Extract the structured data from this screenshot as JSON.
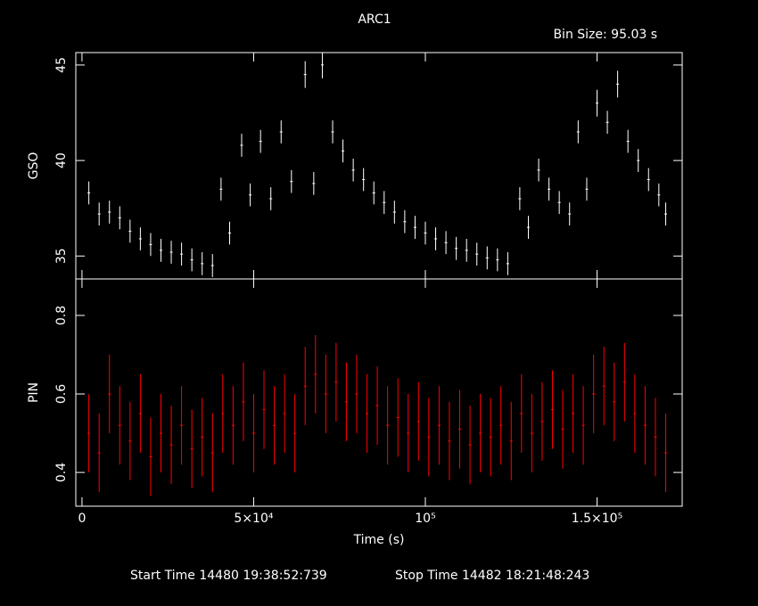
{
  "title": "ARC1",
  "bin_size": "Bin Size: 95.03 s",
  "start_time": "Start Time 14480 19:38:52:739",
  "stop_time": "Stop Time 14482 18:21:48:243",
  "chart_data": [
    {
      "type": "errorbar",
      "ylabel": "GSO",
      "color": "#ffffff",
      "xlim": [
        -1800,
        174800
      ],
      "ylim": [
        33.8,
        45.65
      ],
      "yticks": [
        35,
        40,
        45
      ],
      "x": [
        2000,
        5000,
        8000,
        11000,
        14000,
        17000,
        20000,
        23000,
        26000,
        29000,
        32000,
        35000,
        38000,
        40500,
        43000,
        46500,
        49000,
        52000,
        55000,
        58000,
        61000,
        65000,
        67500,
        70000,
        73000,
        76000,
        79000,
        82000,
        85000,
        88000,
        91000,
        94000,
        97000,
        100000,
        103000,
        106000,
        109000,
        112000,
        115000,
        118000,
        121000,
        124000,
        127500,
        130000,
        133000,
        136000,
        139000,
        142000,
        144500,
        147000,
        150000,
        153000,
        156000,
        159000,
        162000,
        165000,
        168000,
        170000
      ],
      "values": [
        38.3,
        37.2,
        37.3,
        37.0,
        36.3,
        35.9,
        35.6,
        35.3,
        35.2,
        35.1,
        34.8,
        34.6,
        34.5,
        38.5,
        36.2,
        40.8,
        38.2,
        41.0,
        38.0,
        41.5,
        38.9,
        44.5,
        38.8,
        45.0,
        41.5,
        40.5,
        39.5,
        39.0,
        38.3,
        37.8,
        37.3,
        36.8,
        36.5,
        36.2,
        35.9,
        35.7,
        35.4,
        35.3,
        35.1,
        34.9,
        34.8,
        34.6,
        38.0,
        36.5,
        39.5,
        38.5,
        37.8,
        37.2,
        41.5,
        38.5,
        43.0,
        42.0,
        44.0,
        41.0,
        40.0,
        39.0,
        38.2,
        37.2
      ],
      "errors": [
        0.6,
        0.6,
        0.6,
        0.6,
        0.6,
        0.6,
        0.6,
        0.6,
        0.6,
        0.6,
        0.6,
        0.6,
        0.6,
        0.6,
        0.6,
        0.6,
        0.6,
        0.6,
        0.6,
        0.6,
        0.6,
        0.7,
        0.6,
        0.7,
        0.6,
        0.6,
        0.6,
        0.6,
        0.6,
        0.6,
        0.6,
        0.6,
        0.6,
        0.6,
        0.6,
        0.6,
        0.6,
        0.6,
        0.6,
        0.6,
        0.6,
        0.6,
        0.6,
        0.6,
        0.6,
        0.6,
        0.6,
        0.6,
        0.6,
        0.6,
        0.7,
        0.6,
        0.7,
        0.6,
        0.6,
        0.6,
        0.6,
        0.6
      ]
    },
    {
      "type": "errorbar",
      "ylabel": "PIN",
      "xlabel": "Time (s)",
      "color": "#ff0000",
      "xlim": [
        -1800,
        174800
      ],
      "ylim": [
        0.314,
        0.893
      ],
      "yticks": [
        0.4,
        0.6,
        0.8
      ],
      "xticks": [
        0,
        {
          "value": 50000,
          "label": "5×10⁴"
        },
        {
          "value": 100000,
          "label": "10⁵"
        },
        {
          "value": 150000,
          "label": "1.5×10⁵"
        }
      ],
      "x": [
        2000,
        5000,
        8000,
        11000,
        14000,
        17000,
        20000,
        23000,
        26000,
        29000,
        32000,
        35000,
        38000,
        41000,
        44000,
        47000,
        50000,
        53000,
        56000,
        59000,
        62000,
        65000,
        68000,
        71000,
        74000,
        77000,
        80000,
        83000,
        86000,
        89000,
        92000,
        95000,
        98000,
        101000,
        104000,
        107000,
        110000,
        113000,
        116000,
        119000,
        122000,
        125000,
        128000,
        131000,
        134000,
        137000,
        140000,
        143000,
        146000,
        149000,
        152000,
        155000,
        158000,
        161000,
        164000,
        167000,
        170000
      ],
      "values": [
        0.5,
        0.45,
        0.6,
        0.52,
        0.48,
        0.55,
        0.44,
        0.5,
        0.47,
        0.52,
        0.46,
        0.49,
        0.45,
        0.55,
        0.52,
        0.58,
        0.5,
        0.56,
        0.52,
        0.55,
        0.5,
        0.62,
        0.65,
        0.6,
        0.63,
        0.58,
        0.6,
        0.55,
        0.57,
        0.52,
        0.54,
        0.5,
        0.53,
        0.49,
        0.52,
        0.48,
        0.51,
        0.47,
        0.5,
        0.49,
        0.52,
        0.48,
        0.55,
        0.5,
        0.53,
        0.56,
        0.51,
        0.55,
        0.52,
        0.6,
        0.62,
        0.58,
        0.63,
        0.55,
        0.52,
        0.49,
        0.45
      ],
      "errors": [
        0.1,
        0.1,
        0.1,
        0.1,
        0.1,
        0.1,
        0.1,
        0.1,
        0.1,
        0.1,
        0.1,
        0.1,
        0.1,
        0.1,
        0.1,
        0.1,
        0.1,
        0.1,
        0.1,
        0.1,
        0.1,
        0.1,
        0.1,
        0.1,
        0.1,
        0.1,
        0.1,
        0.1,
        0.1,
        0.1,
        0.1,
        0.1,
        0.1,
        0.1,
        0.1,
        0.1,
        0.1,
        0.1,
        0.1,
        0.1,
        0.1,
        0.1,
        0.1,
        0.1,
        0.1,
        0.1,
        0.1,
        0.1,
        0.1,
        0.1,
        0.1,
        0.1,
        0.1,
        0.1,
        0.1,
        0.1,
        0.1
      ]
    }
  ]
}
